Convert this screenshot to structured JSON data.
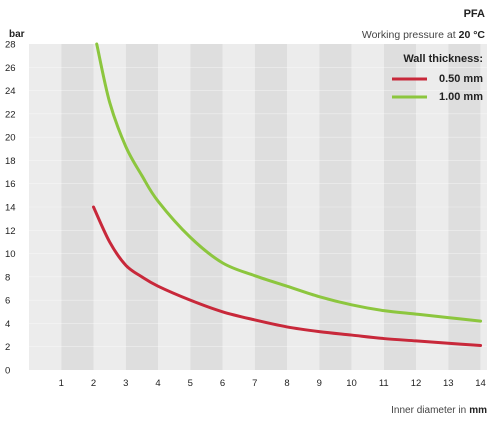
{
  "chart_data": {
    "type": "line",
    "title": "PFA",
    "subtitle": "Working pressure at",
    "subtitle_value": "20 °C",
    "ylabel": "bar",
    "xlabel": "Inner diameter in",
    "xlabel_unit": "mm",
    "xlim": [
      0,
      14.2
    ],
    "ylim": [
      0,
      28
    ],
    "x_ticks": [
      "1",
      "2",
      "3",
      "4",
      "5",
      "6",
      "7",
      "8",
      "9",
      "10",
      "11",
      "12",
      "13",
      "14"
    ],
    "y_ticks": [
      "0",
      "2",
      "4",
      "6",
      "8",
      "10",
      "12",
      "14",
      "16",
      "18",
      "20",
      "22",
      "24",
      "26",
      "28"
    ],
    "grid": "alternating vertical bands",
    "legend": {
      "title": "Wall thickness:",
      "placement": "top-right"
    },
    "series": [
      {
        "name": "0.50 mm",
        "color": "#c8283a",
        "points": [
          [
            2.0,
            14.0
          ],
          [
            2.5,
            11.0
          ],
          [
            3.0,
            9.0
          ],
          [
            3.5,
            8.0
          ],
          [
            4.0,
            7.2
          ],
          [
            5.0,
            6.0
          ],
          [
            6.0,
            5.0
          ],
          [
            7.0,
            4.3
          ],
          [
            8.0,
            3.7
          ],
          [
            9.0,
            3.3
          ],
          [
            10.0,
            3.0
          ],
          [
            11.0,
            2.7
          ],
          [
            12.0,
            2.5
          ],
          [
            13.0,
            2.3
          ],
          [
            14.0,
            2.1
          ]
        ]
      },
      {
        "name": "1.00 mm",
        "color": "#8cc63e",
        "points": [
          [
            2.1,
            28.0
          ],
          [
            2.5,
            23.0
          ],
          [
            3.0,
            19.2
          ],
          [
            3.5,
            16.7
          ],
          [
            4.0,
            14.5
          ],
          [
            5.0,
            11.4
          ],
          [
            6.0,
            9.2
          ],
          [
            7.0,
            8.1
          ],
          [
            8.0,
            7.2
          ],
          [
            9.0,
            6.3
          ],
          [
            10.0,
            5.6
          ],
          [
            11.0,
            5.1
          ],
          [
            12.0,
            4.8
          ],
          [
            13.0,
            4.5
          ],
          [
            14.0,
            4.2
          ]
        ]
      }
    ]
  }
}
